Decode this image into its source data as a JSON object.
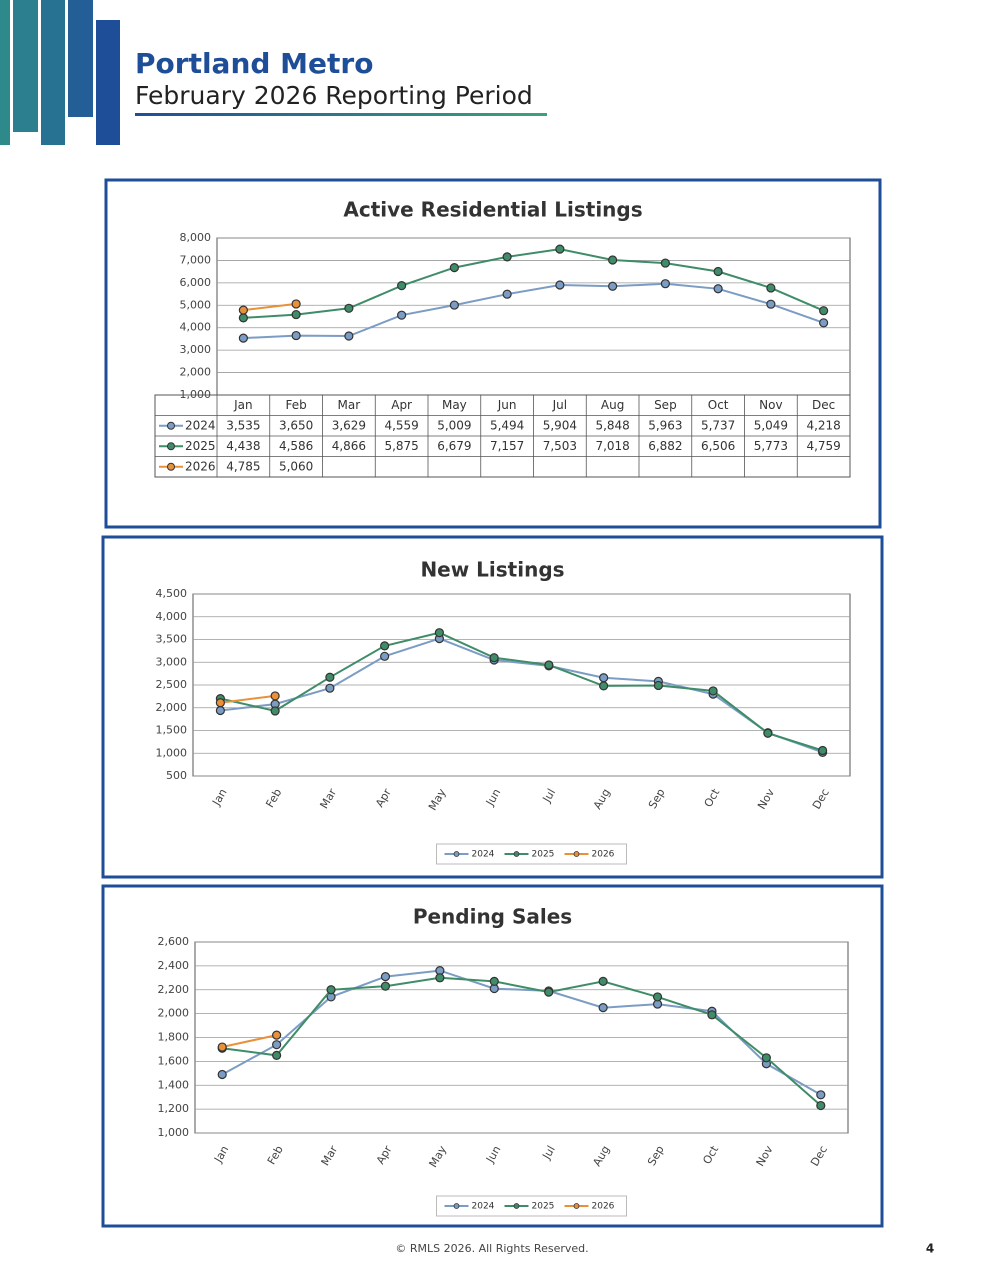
{
  "header": {
    "title": "Portland Metro",
    "subtitle": "February 2026 Reporting Period"
  },
  "chart_data": [
    {
      "type": "line",
      "title": "Active Residential Listings",
      "table": true,
      "grid": true,
      "categories": [
        "Jan",
        "Feb",
        "Mar",
        "Apr",
        "May",
        "Jun",
        "Jul",
        "Aug",
        "Sep",
        "Oct",
        "Nov",
        "Dec"
      ],
      "ylim": [
        1000,
        8000
      ],
      "yticks": [
        {
          "value": 1000,
          "label": "1,000"
        },
        {
          "value": 2000,
          "label": "2,000"
        },
        {
          "value": 3000,
          "label": "3,000"
        },
        {
          "value": 4000,
          "label": "4,000"
        },
        {
          "value": 5000,
          "label": "5,000"
        },
        {
          "value": 6000,
          "label": "6,000"
        },
        {
          "value": 7000,
          "label": "7,000"
        },
        {
          "value": 8000,
          "label": "8,000"
        }
      ],
      "series": [
        {
          "name": "2024",
          "color": "#7b9cc4",
          "values": [
            3535,
            3650,
            3629,
            4559,
            5009,
            5494,
            5904,
            5848,
            5963,
            5737,
            5049,
            4218
          ],
          "value_labels": [
            "3,535",
            "3,650",
            "3,629",
            "4,559",
            "5,009",
            "5,494",
            "5,904",
            "5,848",
            "5,963",
            "5,737",
            "5,049",
            "4,218"
          ]
        },
        {
          "name": "2025",
          "color": "#3f8c68",
          "values": [
            4438,
            4586,
            4866,
            5875,
            6679,
            7157,
            7503,
            7018,
            6882,
            6506,
            5773,
            4759
          ],
          "value_labels": [
            "4,438",
            "4,586",
            "4,866",
            "5,875",
            "6,679",
            "7,157",
            "7,503",
            "7,018",
            "6,882",
            "6,506",
            "5,773",
            "4,759"
          ]
        },
        {
          "name": "2026",
          "color": "#e8913a",
          "values": [
            4785,
            5060,
            null,
            null,
            null,
            null,
            null,
            null,
            null,
            null,
            null,
            null
          ],
          "value_labels": [
            "4,785",
            "5,060",
            null,
            null,
            null,
            null,
            null,
            null,
            null,
            null,
            null,
            null
          ]
        }
      ]
    },
    {
      "type": "line",
      "title": "New Listings",
      "legend": "bottom",
      "grid": true,
      "categories": [
        "Jan",
        "Feb",
        "Mar",
        "Apr",
        "May",
        "Jun",
        "Jul",
        "Aug",
        "Sep",
        "Oct",
        "Nov",
        "Dec"
      ],
      "ylim": [
        500,
        4500
      ],
      "yticks": [
        500,
        {
          "value": 1000,
          "label": "1,000"
        },
        {
          "value": 1500,
          "label": "1,500"
        },
        {
          "value": 2000,
          "label": "2,000"
        },
        {
          "value": 2500,
          "label": "2,500"
        },
        {
          "value": 3000,
          "label": "3,000"
        },
        {
          "value": 3500,
          "label": "3,500"
        },
        {
          "value": 4000,
          "label": "4,000"
        },
        {
          "value": 4500,
          "label": "4,500"
        }
      ],
      "series": [
        {
          "name": "2024",
          "color": "#7b9cc4",
          "values": [
            1940,
            2080,
            2430,
            3130,
            3520,
            3050,
            2920,
            2660,
            2580,
            2300,
            1450,
            1020
          ]
        },
        {
          "name": "2025",
          "color": "#3f8c68",
          "values": [
            2200,
            1930,
            2670,
            3360,
            3650,
            3100,
            2940,
            2480,
            2490,
            2370,
            1440,
            1060
          ]
        },
        {
          "name": "2026",
          "color": "#e8913a",
          "values": [
            2110,
            2260,
            null,
            null,
            null,
            null,
            null,
            null,
            null,
            null,
            null,
            null
          ]
        }
      ]
    },
    {
      "type": "line",
      "title": "Pending Sales",
      "legend": "bottom",
      "grid": true,
      "categories": [
        "Jan",
        "Feb",
        "Mar",
        "Apr",
        "May",
        "Jun",
        "Jul",
        "Aug",
        "Sep",
        "Oct",
        "Nov",
        "Dec"
      ],
      "ylim": [
        1000,
        2600
      ],
      "yticks": [
        {
          "value": 1000,
          "label": "1,000"
        },
        {
          "value": 1200,
          "label": "1,200"
        },
        {
          "value": 1400,
          "label": "1,400"
        },
        {
          "value": 1600,
          "label": "1,600"
        },
        {
          "value": 1800,
          "label": "1,800"
        },
        {
          "value": 2000,
          "label": "2,000"
        },
        {
          "value": 2200,
          "label": "2,200"
        },
        {
          "value": 2400,
          "label": "2,400"
        },
        {
          "value": 2600,
          "label": "2,600"
        }
      ],
      "series": [
        {
          "name": "2024",
          "color": "#7b9cc4",
          "values": [
            1490,
            1740,
            2140,
            2310,
            2360,
            2210,
            2190,
            2050,
            2080,
            2020,
            1580,
            1320
          ]
        },
        {
          "name": "2025",
          "color": "#3f8c68",
          "values": [
            1710,
            1650,
            2200,
            2230,
            2300,
            2270,
            2180,
            2270,
            2140,
            1990,
            1630,
            1230
          ]
        },
        {
          "name": "2026",
          "color": "#e8913a",
          "values": [
            1720,
            1820,
            null,
            null,
            null,
            null,
            null,
            null,
            null,
            null,
            null,
            null
          ]
        }
      ]
    }
  ],
  "footer": {
    "copyright": "© RMLS 2026. All Rights Reserved.",
    "page": "4"
  }
}
